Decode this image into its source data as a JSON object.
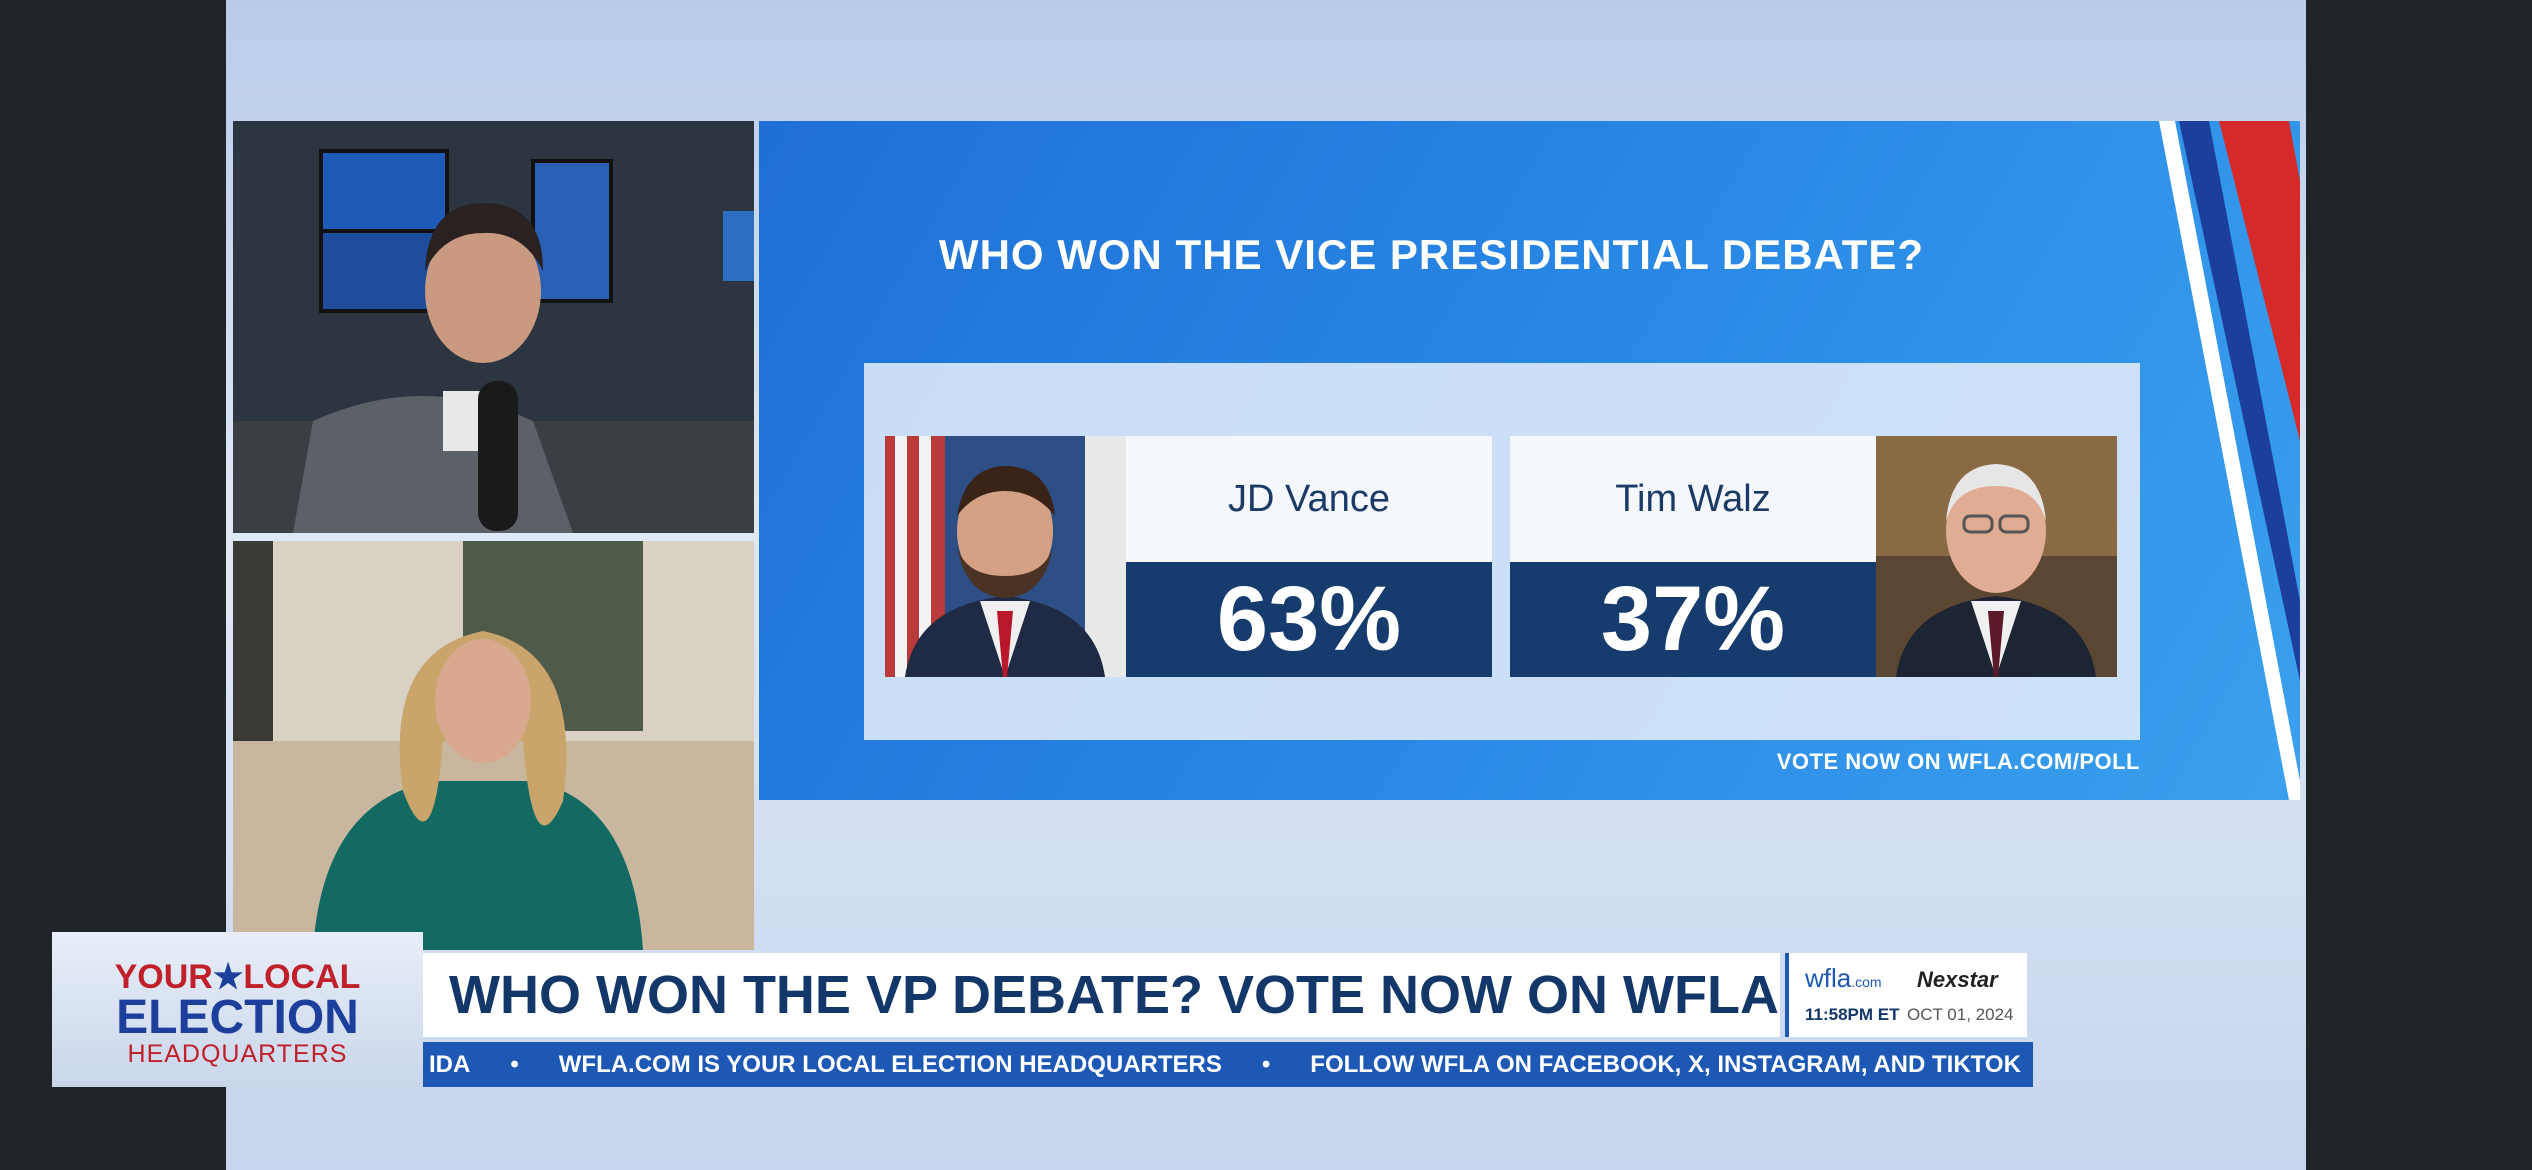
{
  "poll": {
    "title": "WHO WON THE VICE PRESIDENTIAL DEBATE?",
    "candidates": [
      {
        "name": "JD Vance",
        "result": "63%"
      },
      {
        "name": "Tim Walz",
        "result": "37%"
      }
    ],
    "call_to_action": "VOTE NOW ON WFLA.COM/POLL"
  },
  "lower_third": {
    "logo": [
      "YOUR",
      "LOCAL",
      "ELECTION",
      "HEADQUARTERS"
    ],
    "headline": "WHO WON THE VP DEBATE? VOTE NOW ON WFLA.COM/POLL",
    "station": "wfla",
    "station_suffix": ".com",
    "network": "Nexstar",
    "time": "11:58PM ET",
    "date": "OCT 01, 2024",
    "ticker": [
      "IDA",
      "WFLA.COM IS YOUR LOCAL ELECTION HEADQUARTERS",
      "FOLLOW WFLA ON FACEBOOK, X, INSTAGRAM, AND TIKTOK"
    ]
  }
}
